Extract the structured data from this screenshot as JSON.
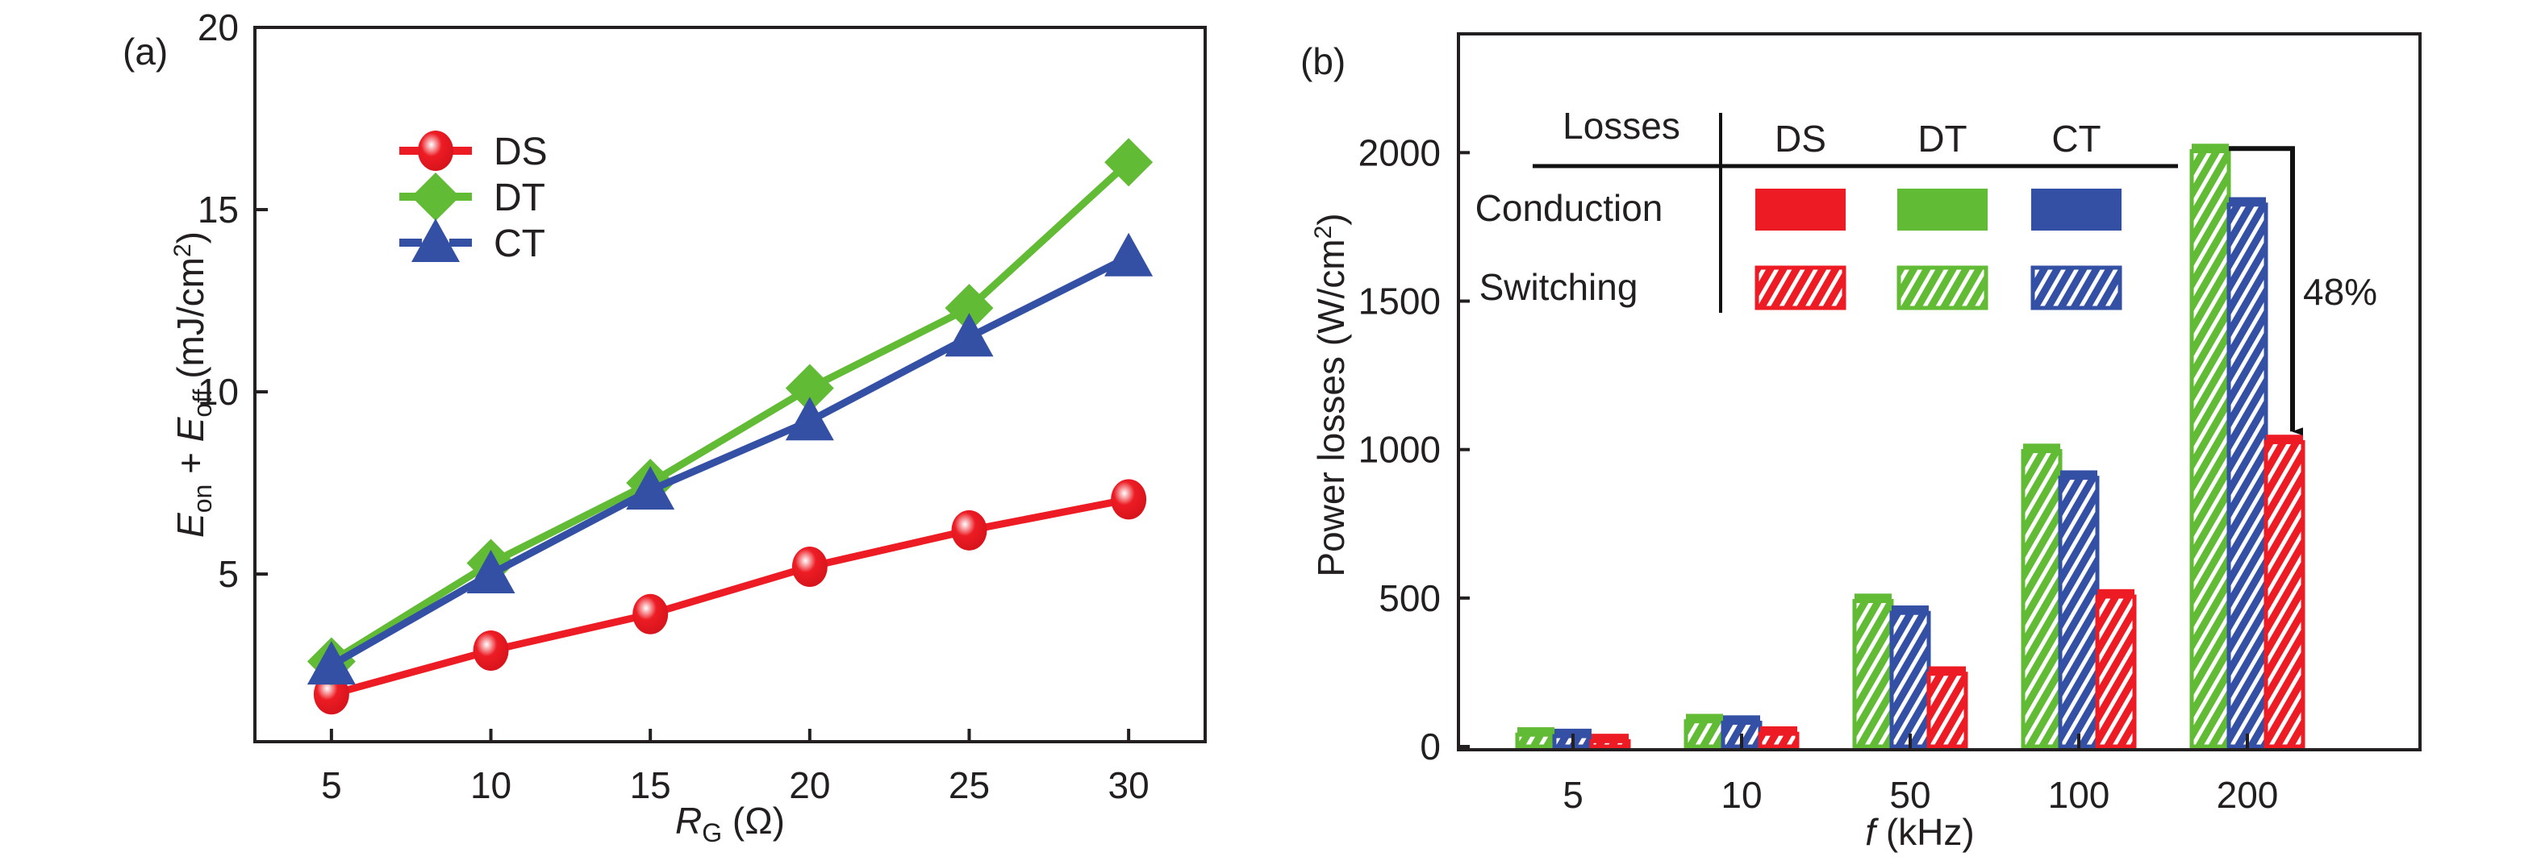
{
  "chart_data": [
    {
      "panel": "(a)",
      "type": "line",
      "title": "",
      "xlabel": "R_G (Ω)",
      "xlabel_main": "R",
      "xlabel_sub": "G",
      "xlabel_unit": " (Ω)",
      "ylabel": "E_on + E_off (mJ/cm²)",
      "ylabel_parts": {
        "e1": "E",
        "s1": "on",
        "plus": " + ",
        "e2": "E",
        "s2": "off",
        "unit": " (mJ/cm",
        "sup": "2",
        "close": ")"
      },
      "x": [
        5,
        10,
        15,
        20,
        25,
        30
      ],
      "x_ticks": [
        "5",
        "10",
        "15",
        "20",
        "25",
        "30"
      ],
      "y_ticks": [
        "5",
        "10",
        "15",
        "20"
      ],
      "y_tick_values": [
        5,
        10,
        15,
        20
      ],
      "xlim": [
        2.6,
        32.4
      ],
      "ylim": [
        0.4,
        20
      ],
      "grid": false,
      "legend_position": "upper-left",
      "series": [
        {
          "name": "DS",
          "marker": "circle",
          "color": "#ed1c24",
          "values": [
            1.7,
            2.9,
            3.9,
            5.2,
            6.2,
            7.05
          ]
        },
        {
          "name": "DT",
          "marker": "diamond",
          "color": "#62bb35",
          "values": [
            2.6,
            5.3,
            7.5,
            10.1,
            12.3,
            16.3
          ]
        },
        {
          "name": "CT",
          "marker": "triangle",
          "color": "#3350a5",
          "values": [
            2.5,
            5.0,
            7.3,
            9.2,
            11.5,
            13.7
          ]
        }
      ]
    },
    {
      "panel": "(b)",
      "type": "bar",
      "title": "",
      "xlabel": "f (kHz)",
      "xlabel_var": "f",
      "xlabel_unit": " (kHz)",
      "ylabel": "Power losses (W/cm²)",
      "ylabel_main": "Power losses (W/cm",
      "ylabel_sup": "2",
      "ylabel_close": ")",
      "categories": [
        "5",
        "10",
        "50",
        "100",
        "200"
      ],
      "y_ticks": [
        "0",
        "500",
        "1000",
        "1500",
        "2000"
      ],
      "y_tick_values": [
        0,
        500,
        1000,
        1500,
        2000
      ],
      "ylim": [
        0,
        2400
      ],
      "grid": false,
      "legend_position": "top-left (table)",
      "series": [
        {
          "name": "DT",
          "color": "#62bb35",
          "conduction": [
            25,
            25,
            25,
            25,
            25
          ],
          "total": [
            65,
            110,
            515,
            1020,
            2030
          ]
        },
        {
          "name": "CT",
          "color": "#3350a5",
          "conduction": [
            25,
            25,
            25,
            25,
            25
          ],
          "total": [
            60,
            105,
            475,
            930,
            1850
          ]
        },
        {
          "name": "DS",
          "color": "#ed1c24",
          "conduction": [
            25,
            25,
            25,
            25,
            25
          ],
          "total": [
            43,
            68,
            270,
            530,
            1050
          ]
        }
      ],
      "legend_table": {
        "header": "Losses",
        "columns": [
          "DS",
          "DT",
          "CT"
        ],
        "column_colors": [
          "#ed1c24",
          "#62bb35",
          "#3350a5"
        ],
        "rows": [
          {
            "label": "Conduction",
            "style": "solid"
          },
          {
            "label": "Switching",
            "style": "hatched"
          }
        ]
      },
      "annotation": {
        "text": "48%",
        "from_series": "DT",
        "to_series": "DS",
        "category": "200"
      }
    }
  ]
}
